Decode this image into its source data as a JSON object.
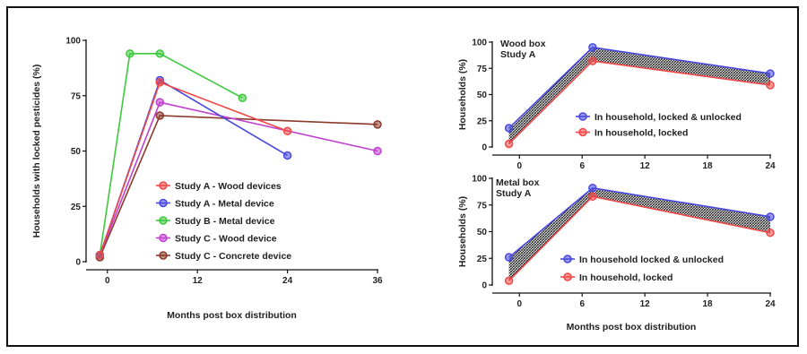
{
  "colors": {
    "study_a_wood": "#f04848",
    "study_a_metal": "#4848e0",
    "study_b_metal": "#3ec83e",
    "study_c_wood": "#c040d0",
    "study_c_concrete": "#8b3a2a",
    "hatch": "#222222"
  },
  "chart_data": [
    {
      "type": "line",
      "xlabel": "Months post box distribution",
      "ylabel": "Households with locked pesticides (%)",
      "xlim": [
        -2,
        36
      ],
      "ylim": [
        0,
        100
      ],
      "xticks": [
        0,
        12,
        24,
        36
      ],
      "yticks": [
        0,
        25,
        50,
        75,
        100
      ],
      "legend_position": "bottom-center",
      "series": [
        {
          "name": "Study A - Wood devices",
          "x": [
            -1,
            7,
            24
          ],
          "y": [
            3,
            81,
            59
          ]
        },
        {
          "name": "Study A - Metal device",
          "x": [
            -1,
            7,
            24
          ],
          "y": [
            3,
            82,
            48
          ]
        },
        {
          "name": "Study B - Metal device",
          "x": [
            -1,
            3,
            7,
            18
          ],
          "y": [
            3,
            94,
            94,
            74
          ]
        },
        {
          "name": "Study C - Wood device",
          "x": [
            -1,
            7,
            36
          ],
          "y": [
            3,
            72,
            50
          ]
        },
        {
          "name": "Study C - Concrete device",
          "x": [
            -1,
            7,
            36
          ],
          "y": [
            2,
            66,
            62
          ]
        }
      ]
    },
    {
      "type": "line",
      "title_lines": [
        "Wood box",
        "Study A"
      ],
      "xlabel": "",
      "ylabel": "Households (%)",
      "xlim": [
        -2,
        24
      ],
      "ylim": [
        0,
        100
      ],
      "xticks": [
        0,
        6,
        12,
        18,
        24
      ],
      "yticks": [
        0,
        25,
        50,
        75,
        100
      ],
      "legend_position": "bottom-right",
      "fill_between": true,
      "series": [
        {
          "name": "In household, locked & unlocked",
          "x": [
            -1,
            7,
            24
          ],
          "y": [
            18,
            95,
            70
          ]
        },
        {
          "name": "In household, locked",
          "x": [
            -1,
            7,
            24
          ],
          "y": [
            3,
            82,
            59
          ]
        }
      ]
    },
    {
      "type": "line",
      "title_lines": [
        "Metal box",
        "Study A"
      ],
      "xlabel": "Months post box distribution",
      "ylabel": "Households (%)",
      "xlim": [
        -2,
        24
      ],
      "ylim": [
        0,
        100
      ],
      "xticks": [
        0,
        6,
        12,
        18,
        24
      ],
      "yticks": [
        0,
        25,
        50,
        75,
        100
      ],
      "legend_position": "bottom-right",
      "fill_between": true,
      "series": [
        {
          "name": "In household locked & unlocked",
          "x": [
            -1,
            7,
            24
          ],
          "y": [
            26,
            91,
            64
          ]
        },
        {
          "name": "In household, locked",
          "x": [
            -1,
            7,
            24
          ],
          "y": [
            4,
            83,
            49
          ]
        }
      ]
    }
  ]
}
